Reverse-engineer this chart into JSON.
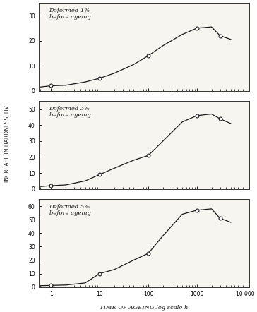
{
  "panels": [
    {
      "label": "Deformed 1%\nbefore ageing",
      "ylim": [
        0,
        35
      ],
      "yticks": [
        0,
        10,
        20,
        30
      ],
      "x": [
        0.6,
        1,
        2,
        5,
        10,
        20,
        50,
        100,
        200,
        500,
        1000,
        2000,
        3000,
        5000
      ],
      "y": [
        1.5,
        2.0,
        2.2,
        3.5,
        5.0,
        7.0,
        10.5,
        14.0,
        18.0,
        22.5,
        25.0,
        25.5,
        22.0,
        20.5
      ]
    },
    {
      "label": "Deformed 3%\nbefore ageing",
      "ylim": [
        0,
        55
      ],
      "yticks": [
        0,
        10,
        20,
        30,
        40,
        50
      ],
      "x": [
        0.6,
        1,
        2,
        5,
        10,
        20,
        50,
        100,
        200,
        500,
        1000,
        2000,
        3000,
        5000
      ],
      "y": [
        1.5,
        2.0,
        2.5,
        5.0,
        9.0,
        13.0,
        18.0,
        21.0,
        30.0,
        42.0,
        46.0,
        47.0,
        44.0,
        41.0
      ]
    },
    {
      "label": "Deformed 5%\nbefore ageing",
      "ylim": [
        0,
        65
      ],
      "yticks": [
        0,
        10,
        20,
        30,
        40,
        50,
        60
      ],
      "x": [
        0.6,
        1,
        2,
        5,
        10,
        20,
        50,
        100,
        200,
        500,
        1000,
        2000,
        3000,
        5000
      ],
      "y": [
        1.0,
        1.2,
        1.5,
        3.0,
        10.0,
        13.0,
        20.0,
        25.0,
        38.0,
        54.0,
        57.0,
        58.0,
        51.0,
        48.0
      ]
    }
  ],
  "marker_x": [
    [
      1,
      10,
      100,
      1000,
      3000
    ],
    [
      1,
      10,
      100,
      1000,
      3000
    ],
    [
      1,
      10,
      100,
      1000,
      3000
    ]
  ],
  "marker_y": [
    [
      2.0,
      5.0,
      14.0,
      25.0,
      22.0
    ],
    [
      2.0,
      9.0,
      21.0,
      46.0,
      44.0
    ],
    [
      1.2,
      10.0,
      25.0,
      57.0,
      51.0
    ]
  ],
  "xlabel": "TIME OF AGEING,log scale h",
  "ylabel": "INCREASE IN HARDNESS, HV",
  "xlim": [
    0.55,
    12000
  ],
  "xticks": [
    1,
    10,
    100,
    1000,
    10000
  ],
  "xticklabels": [
    "1",
    "10",
    "100",
    "1000",
    "10 000"
  ],
  "bg_color": "#ffffff",
  "panel_bg": "#f7f5f0",
  "line_color": "#1a1a1a",
  "marker_color": "white",
  "marker_edge_color": "#1a1a1a"
}
